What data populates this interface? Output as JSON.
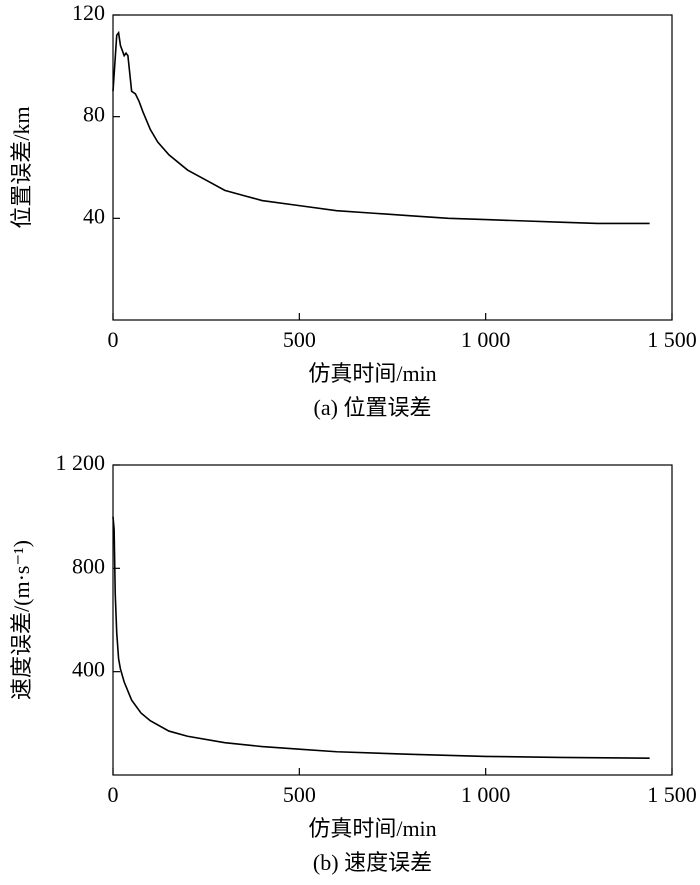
{
  "chart_data": [
    {
      "type": "line",
      "xlabel": "仿真时间/min",
      "ylabel": "位置误差/km",
      "caption": "(a) 位置误差",
      "xlim": [
        0,
        1500
      ],
      "xticks": [
        0,
        500,
        {
          "value": 1000,
          "label": "1 000"
        },
        {
          "value": 1500,
          "label": "1 500"
        }
      ],
      "ylim": [
        0,
        120
      ],
      "yticks": [
        40,
        80,
        120
      ],
      "grid": false,
      "series": [
        {
          "name": "位置误差",
          "color": "#000000",
          "x": [
            0,
            10,
            15,
            20,
            25,
            30,
            35,
            40,
            45,
            50,
            60,
            70,
            80,
            100,
            120,
            150,
            200,
            250,
            300,
            350,
            400,
            500,
            600,
            700,
            800,
            900,
            1000,
            1100,
            1200,
            1300,
            1440
          ],
          "values": [
            90,
            112,
            113,
            108,
            106,
            104,
            105,
            104,
            97,
            90,
            89,
            86,
            82,
            75,
            70,
            65,
            59,
            55,
            51,
            49,
            47,
            45,
            43,
            42,
            41,
            40,
            39.5,
            39,
            38.5,
            38,
            38
          ]
        }
      ]
    },
    {
      "type": "line",
      "xlabel": "仿真时间/min",
      "ylabel": "速度误差/(m·s⁻¹)",
      "caption": "(b) 速度误差",
      "xlim": [
        0,
        1500
      ],
      "xticks": [
        0,
        500,
        {
          "value": 1000,
          "label": "1 000"
        },
        {
          "value": 1500,
          "label": "1 500"
        }
      ],
      "ylim": [
        0,
        1200
      ],
      "yticks": [
        400,
        800,
        {
          "value": 1200,
          "label": "1 200"
        }
      ],
      "grid": false,
      "series": [
        {
          "name": "速度误差",
          "color": "#000000",
          "x": [
            0,
            3,
            6,
            10,
            15,
            20,
            30,
            50,
            75,
            100,
            150,
            200,
            300,
            400,
            500,
            600,
            800,
            1000,
            1200,
            1440
          ],
          "values": [
            1000,
            950,
            700,
            550,
            450,
            410,
            360,
            290,
            240,
            210,
            170,
            150,
            125,
            110,
            100,
            90,
            80,
            72,
            68,
            65
          ]
        }
      ]
    }
  ]
}
